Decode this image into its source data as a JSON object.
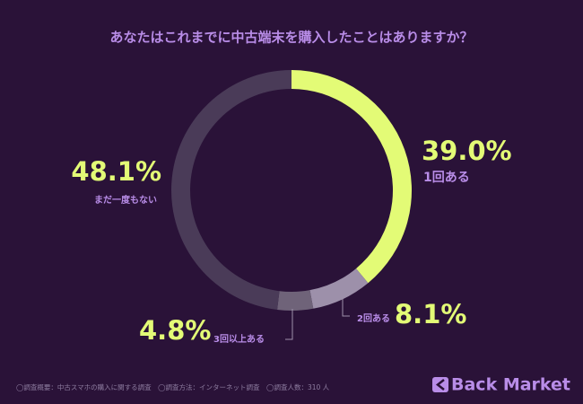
{
  "chart_data": {
    "type": "donut",
    "title": "あなたはこれまでに中古端末を購入したことはありますか？",
    "categories": [
      "1回ある",
      "2回ある",
      "3回以上ある",
      "まだ一度もない"
    ],
    "values": [
      39.0,
      8.1,
      4.8,
      48.1
    ],
    "value_labels": [
      "39.0%",
      "8.1%",
      "4.8%",
      "48.1%"
    ],
    "colors": [
      "#e3fb76",
      "#9d90aa",
      "#6f6379",
      "#4a3b58"
    ],
    "note": "◯調査概要：中古スマホの購入に関する調査　◯調査方法：インターネット調査　◯調査人数：310 人",
    "brand": "Back Market"
  }
}
